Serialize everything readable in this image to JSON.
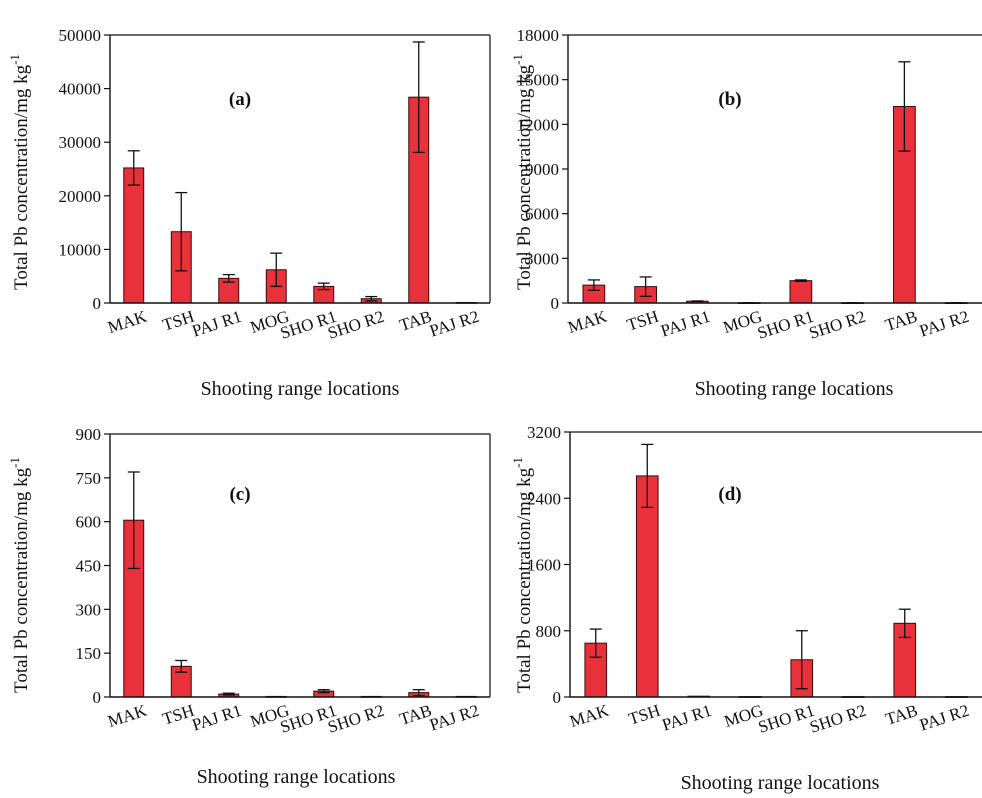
{
  "figure": {
    "colors": {
      "bar": "#e8313a",
      "bar_stroke": "#3a0a0a",
      "axis": "#111111"
    },
    "label_suffix": "-1"
  },
  "chart_data": [
    {
      "type": "bar",
      "panel_label": "(a)",
      "categories": [
        "MAK",
        "TSH",
        "PAJ R1",
        "MOG",
        "SHO R1",
        "SHO R2",
        "TAB",
        "PAJ R2"
      ],
      "values": [
        25200,
        13300,
        4600,
        6200,
        3100,
        800,
        38400,
        100
      ],
      "errors": [
        3200,
        7300,
        700,
        3100,
        600,
        400,
        10300,
        0
      ],
      "ylim": [
        0,
        50000
      ],
      "yticks": [
        "0",
        "10000",
        "20000",
        "30000",
        "40000",
        "50000"
      ],
      "ylabel": "Total Pb concentration/mg kg",
      "xlabel": "Shooting range locations"
    },
    {
      "type": "bar",
      "panel_label": "(b)",
      "categories": [
        "MAK",
        "TSH",
        "PAJ R1",
        "MOG",
        "SHO R1",
        "SHO R2",
        "TAB",
        "PAJ R2"
      ],
      "values": [
        1200,
        1100,
        120,
        20,
        1500,
        20,
        13200,
        20
      ],
      "errors": [
        350,
        650,
        20,
        5,
        50,
        5,
        3000,
        5
      ],
      "ylim": [
        0,
        18000
      ],
      "yticks": [
        "0",
        "3000",
        "6000",
        "9000",
        "12000",
        "15000",
        "18000"
      ],
      "ylabel": "Total Pb concentration/mg kg",
      "xlabel": "Shooting range locations"
    },
    {
      "type": "bar",
      "panel_label": "(c)",
      "categories": [
        "MAK",
        "TSH",
        "PAJ R1",
        "MOG",
        "SHO R1",
        "SHO R2",
        "TAB",
        "PAJ R2"
      ],
      "values": [
        605,
        105,
        10,
        2,
        20,
        2,
        15,
        2
      ],
      "errors": [
        165,
        20,
        3,
        0,
        5,
        0,
        10,
        0
      ],
      "ylim": [
        0,
        900
      ],
      "yticks": [
        "0",
        "150",
        "300",
        "450",
        "600",
        "750",
        "900"
      ],
      "ylabel": "Total Pb concentration/mg kg",
      "xlabel": "Shooting range locations"
    },
    {
      "type": "bar",
      "panel_label": "(d)",
      "categories": [
        "MAK",
        "TSH",
        "PAJ R1",
        "MOG",
        "SHO R1",
        "SHO R2",
        "TAB",
        "PAJ R2"
      ],
      "values": [
        650,
        2670,
        10,
        5,
        450,
        5,
        890,
        5
      ],
      "errors": [
        170,
        380,
        0,
        0,
        350,
        0,
        170,
        0
      ],
      "ylim": [
        0,
        3200
      ],
      "yticks": [
        "0",
        "800",
        "1600",
        "2400",
        "3200"
      ],
      "ylabel": "Total Pb concentration/mg kg",
      "xlabel": "Shooting range locations"
    }
  ]
}
